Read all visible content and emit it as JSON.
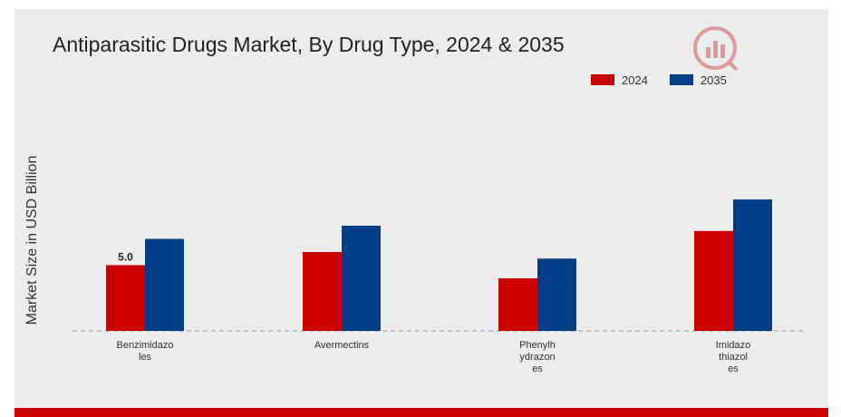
{
  "chart_data": {
    "type": "bar",
    "title": "Antiparasitic Drugs Market, By Drug Type, 2024 & 2035",
    "xlabel": "",
    "ylabel": "Market Size in USD Billion",
    "categories": [
      "Benzimidazo\nles",
      "Avermectins",
      "Phenylh\nydrazon\nes",
      "Imidazo\nthiazol\nes"
    ],
    "series": [
      {
        "name": "2024",
        "color": "#cc0000",
        "values": [
          5.0,
          6.0,
          4.0,
          7.6
        ]
      },
      {
        "name": "2035",
        "color": "#003f87",
        "values": [
          7.0,
          8.0,
          5.5,
          10.0
        ]
      }
    ],
    "data_labels": [
      {
        "series": 0,
        "index": 0,
        "text": "5.0"
      }
    ],
    "ylim": [
      0,
      10
    ],
    "grid": false,
    "baseline": "dashed",
    "legend_position": "top-right"
  },
  "colors": {
    "panel_background": "#ececec",
    "footer_bar": "#cc0000",
    "baseline": "#999999"
  },
  "icons": {
    "watermark": "logo-icon"
  }
}
